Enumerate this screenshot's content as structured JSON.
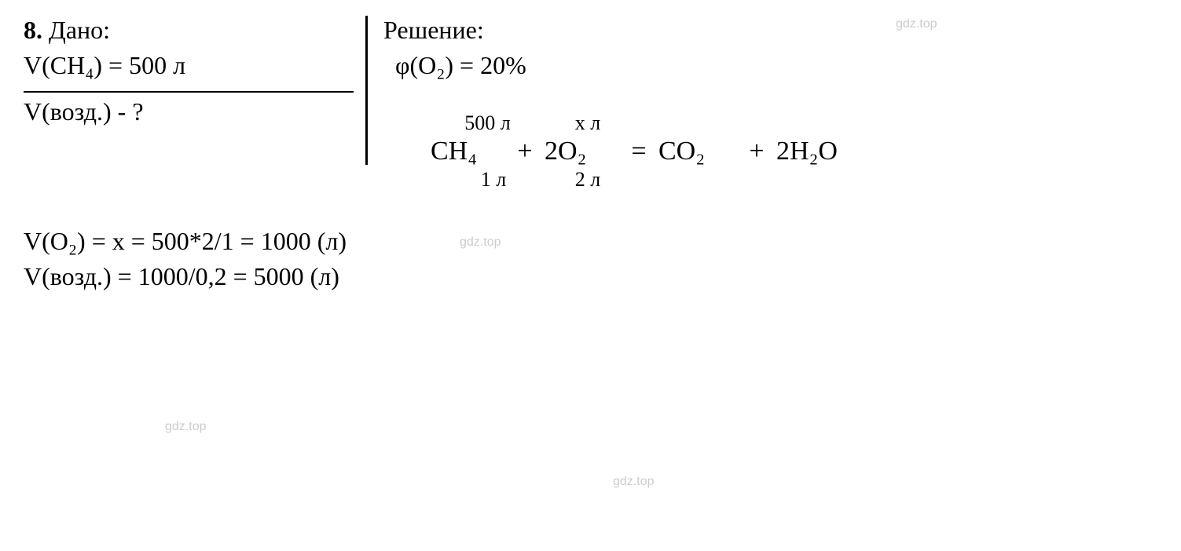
{
  "problem": {
    "number": "8.",
    "given_label": "Дано:",
    "given_line1": "V(CH₄) = 500 л",
    "find_line": "V(возд.) - ?"
  },
  "solution": {
    "label": "Решение:",
    "oxygen_fraction": "φ(O₂) = 20%"
  },
  "equation": {
    "above_ch4": "500 л",
    "above_o2": "х л",
    "ch4": "CH₄",
    "plus": "+",
    "o2": "2O₂",
    "equals": "=",
    "co2": "CO₂",
    "h2o": "2H₂O",
    "below_ch4": "1 л",
    "below_o2": "2 л"
  },
  "results": {
    "oxygen": "V(O₂) = х = 500*2/1 = 1000 (л)",
    "air": "V(возд.) = 1000/0,2 = 5000 (л)"
  },
  "watermarks": {
    "text": "gdz.top"
  },
  "styling": {
    "background_color": "#ffffff",
    "text_color": "#000000",
    "watermark_color": "#cccccc",
    "font_family": "Times New Roman",
    "base_fontsize": 32,
    "equation_fontsize": 34,
    "annotation_fontsize": 26,
    "watermark_fontsize": 16,
    "divider_width": 3,
    "fraction_line_width": 2,
    "fraction_line_length": 420
  }
}
